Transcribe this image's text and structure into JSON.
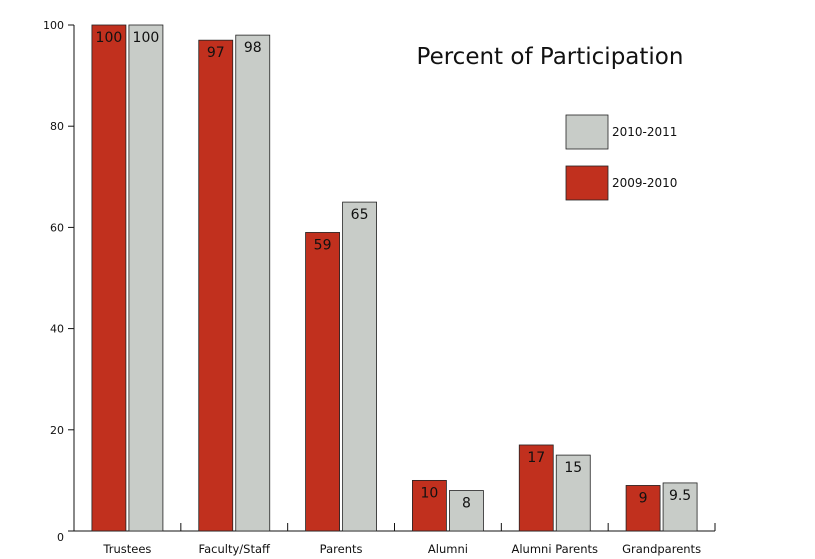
{
  "chart_data": {
    "type": "bar",
    "title": "Percent of Participation",
    "xlabel": "",
    "ylabel": "",
    "ylim": [
      0,
      100
    ],
    "yticks": [
      0,
      20,
      40,
      60,
      80,
      100
    ],
    "grid": false,
    "legend_position": "right",
    "categories": [
      "Trustees",
      "Faculty/Staff",
      "Parents",
      "Alumni",
      "Alumni Parents",
      "Grandparents"
    ],
    "series": [
      {
        "name": "2009-2010",
        "color": "#c1301e",
        "values": [
          100,
          97,
          59,
          10,
          17,
          9
        ],
        "labels": [
          "100",
          "97",
          "59",
          "10",
          "17",
          "9"
        ]
      },
      {
        "name": "2010-2011",
        "color": "#c8ccc8",
        "values": [
          100,
          98,
          65,
          8,
          15,
          9.5
        ],
        "labels": [
          "100",
          "98",
          "65",
          "8",
          "15",
          "9.5"
        ]
      }
    ],
    "legend_order": [
      "2010-2011",
      "2009-2010"
    ]
  }
}
